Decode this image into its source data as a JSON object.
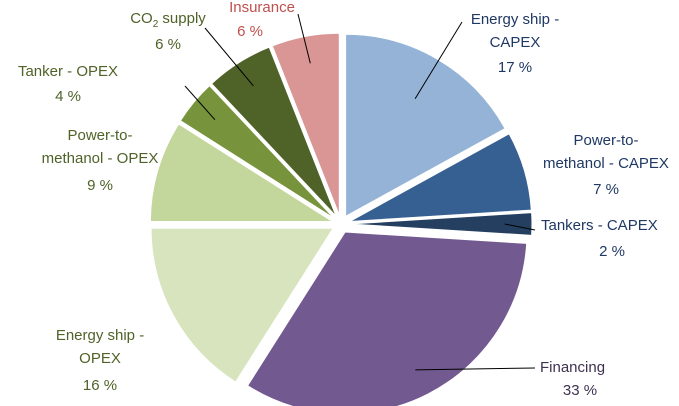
{
  "chart_data": {
    "type": "pie",
    "title": "",
    "start_angle_deg": 0,
    "direction": "clockwise",
    "slices": [
      {
        "label_lines": [
          "Energy ship -",
          "CAPEX"
        ],
        "value": 17,
        "value_label": "17 %",
        "color": "#95b3d7",
        "label_color": "#1f3864"
      },
      {
        "label_lines": [
          "Power-to-",
          "methanol - CAPEX"
        ],
        "value": 7,
        "value_label": "7 %",
        "color": "#366092",
        "label_color": "#1f3864"
      },
      {
        "label_lines": [
          "Tankers - CAPEX"
        ],
        "value": 2,
        "value_label": "2 %",
        "color": "#243f60",
        "label_color": "#1f3864"
      },
      {
        "label_lines": [
          "Financing"
        ],
        "value": 33,
        "value_label": "33 %",
        "color": "#725990",
        "label_color": "#3f3151"
      },
      {
        "label_lines": [
          "Energy ship -",
          "OPEX"
        ],
        "value": 16,
        "value_label": "16 %",
        "color": "#d7e4bd",
        "label_color": "#4f6228"
      },
      {
        "label_lines": [
          "Power-to-",
          "methanol - OPEX"
        ],
        "value": 9,
        "value_label": "9 %",
        "color": "#c3d69b",
        "label_color": "#4f6228"
      },
      {
        "label_lines": [
          "Tanker - OPEX"
        ],
        "value": 4,
        "value_label": "4 %",
        "color": "#77933c",
        "label_color": "#4f6228"
      },
      {
        "label_lines": [
          "CO2 supply"
        ],
        "value": 6,
        "value_label": "6 %",
        "color": "#4f6228",
        "label_color": "#4f6228"
      },
      {
        "label_lines": [
          "Insurance"
        ],
        "value": 6,
        "value_label": "6 %",
        "color": "#d99694",
        "label_color": "#c0504d"
      }
    ]
  }
}
